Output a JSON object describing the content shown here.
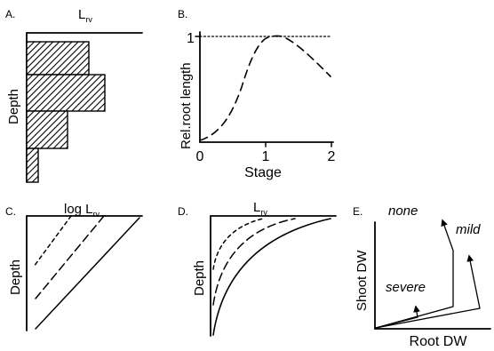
{
  "panels": {
    "a": {
      "label": "A.",
      "top_main": "L",
      "top_sub": "rv",
      "ylabel": "Depth"
    },
    "b": {
      "label": "B.",
      "ylabel": "Rel.root length",
      "xlabel": "Stage",
      "y_tick": "1",
      "x_ticks": [
        "0",
        "1",
        "2"
      ]
    },
    "c": {
      "label": "C.",
      "top_main": "log  L",
      "top_sub": "rv",
      "ylabel": "Depth"
    },
    "d": {
      "label": "D.",
      "top_main": "L",
      "top_sub": "rv",
      "ylabel": "Depth"
    },
    "e": {
      "label": "E.",
      "ylabel": "Shoot DW",
      "xlabel": "Root DW",
      "curve_labels": [
        "none",
        "mild",
        "severe"
      ]
    }
  }
}
